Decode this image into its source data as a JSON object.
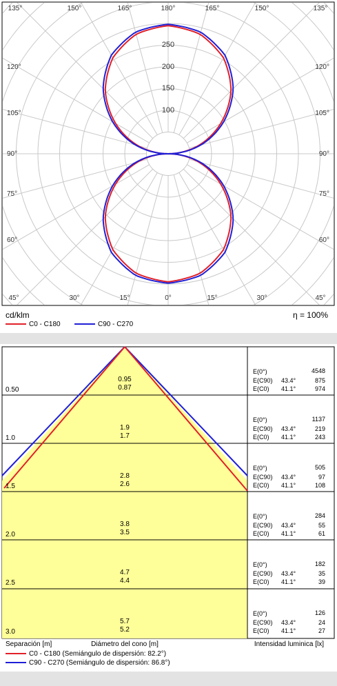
{
  "polar_chart": {
    "unit_label": "cd/klm",
    "efficiency_label": "η = 100%",
    "angle_labels_top": [
      "135°",
      "150°",
      "165°",
      "180°",
      "165°",
      "150°",
      "135°"
    ],
    "angle_labels_side_left": [
      "120°",
      "105°",
      "90°",
      "75°",
      "60°"
    ],
    "angle_labels_side_right": [
      "120°",
      "105°",
      "90°",
      "75°",
      "60°"
    ],
    "angle_labels_bottom": [
      "45°",
      "30°",
      "15°",
      "0°",
      "15°",
      "30°",
      "45°"
    ],
    "radial_labels": [
      "250",
      "200",
      "150",
      "100"
    ],
    "legend": [
      {
        "name": "C0 - C180",
        "color": "#e0202a"
      },
      {
        "name": "C90 - C270",
        "color": "#1f1fd6"
      }
    ]
  },
  "cone_chart": {
    "rows": [
      {
        "separation": "0.50",
        "diam_c90": "0.95",
        "diam_c0": "0.87",
        "e0_label": "E(0°)",
        "e0": "4548",
        "ec90_label": "E(C90)",
        "ec90_angle": "43.4°",
        "ec90": "875",
        "ec0_label": "E(C0)",
        "ec0_angle": "41.1°",
        "ec0": "974"
      },
      {
        "separation": "1.0",
        "diam_c90": "1.9",
        "diam_c0": "1.7",
        "e0_label": "E(0°)",
        "e0": "1137",
        "ec90_label": "E(C90)",
        "ec90_angle": "43.4°",
        "ec90": "219",
        "ec0_label": "E(C0)",
        "ec0_angle": "41.1°",
        "ec0": "243"
      },
      {
        "separation": "1.5",
        "diam_c90": "2.8",
        "diam_c0": "2.6",
        "e0_label": "E(0°)",
        "e0": "505",
        "ec90_label": "E(C90)",
        "ec90_angle": "43.4°",
        "ec90": "97",
        "ec0_label": "E(C0)",
        "ec0_angle": "41.1°",
        "ec0": "108"
      },
      {
        "separation": "2.0",
        "diam_c90": "3.8",
        "diam_c0": "3.5",
        "e0_label": "E(0°)",
        "e0": "284",
        "ec90_label": "E(C90)",
        "ec90_angle": "43.4°",
        "ec90": "55",
        "ec0_label": "E(C0)",
        "ec0_angle": "41.1°",
        "ec0": "61"
      },
      {
        "separation": "2.5",
        "diam_c90": "4.7",
        "diam_c0": "4.4",
        "e0_label": "E(0°)",
        "e0": "182",
        "ec90_label": "E(C90)",
        "ec90_angle": "43.4°",
        "ec90": "35",
        "ec0_label": "E(C0)",
        "ec0_angle": "41.1°",
        "ec0": "39"
      },
      {
        "separation": "3.0",
        "diam_c90": "5.7",
        "diam_c0": "5.2",
        "e0_label": "E(0°)",
        "e0": "126",
        "ec90_label": "E(C90)",
        "ec90_angle": "43.4°",
        "ec90": "24",
        "ec0_label": "E(C0)",
        "ec0_angle": "41.1°",
        "ec0": "27"
      }
    ],
    "footer": {
      "separation_label": "Separación [m]",
      "diameter_label": "Diámetro del cono [m]",
      "illuminance_label": "Intensidad luminica [lx]"
    },
    "legend": [
      {
        "name": "C0 - C180 (Semiángulo de dispersión: 82.2°)",
        "color": "#e0202a"
      },
      {
        "name": "C90 - C270 (Semiángulo de dispersión: 86.8°)",
        "color": "#1f1fd6"
      }
    ]
  },
  "chart_data": [
    {
      "type": "polar",
      "unit": "cd/klm",
      "r_ticks": [
        100,
        150,
        200,
        250
      ],
      "r_max": 300,
      "series": [
        {
          "name": "C0 - C180",
          "gamma_deg": [
            0,
            15,
            30,
            45,
            60,
            75,
            90
          ],
          "values": [
            295,
            285,
            255,
            205,
            140,
            72,
            0
          ]
        },
        {
          "name": "C90 - C270",
          "gamma_deg": [
            0,
            15,
            30,
            45,
            60,
            75,
            90
          ],
          "values": [
            298,
            290,
            262,
            212,
            148,
            78,
            0
          ]
        }
      ]
    },
    {
      "type": "table",
      "columns": [
        "Separación [m]",
        "Diámetro C90 [m]",
        "Diámetro C0 [m]",
        "E(0°) [lx]",
        "E(C90) [lx]",
        "E(C0) [lx]"
      ],
      "rows": [
        [
          0.5,
          0.95,
          0.87,
          4548,
          875,
          974
        ],
        [
          1.0,
          1.9,
          1.7,
          1137,
          219,
          243
        ],
        [
          1.5,
          2.8,
          2.6,
          505,
          97,
          108
        ],
        [
          2.0,
          3.8,
          3.5,
          284,
          55,
          61
        ],
        [
          2.5,
          4.7,
          4.4,
          182,
          35,
          39
        ],
        [
          3.0,
          5.7,
          5.2,
          126,
          24,
          27
        ]
      ],
      "half_angles": {
        "C0 - C180": 82.2,
        "C90 - C270": 86.8
      }
    }
  ]
}
